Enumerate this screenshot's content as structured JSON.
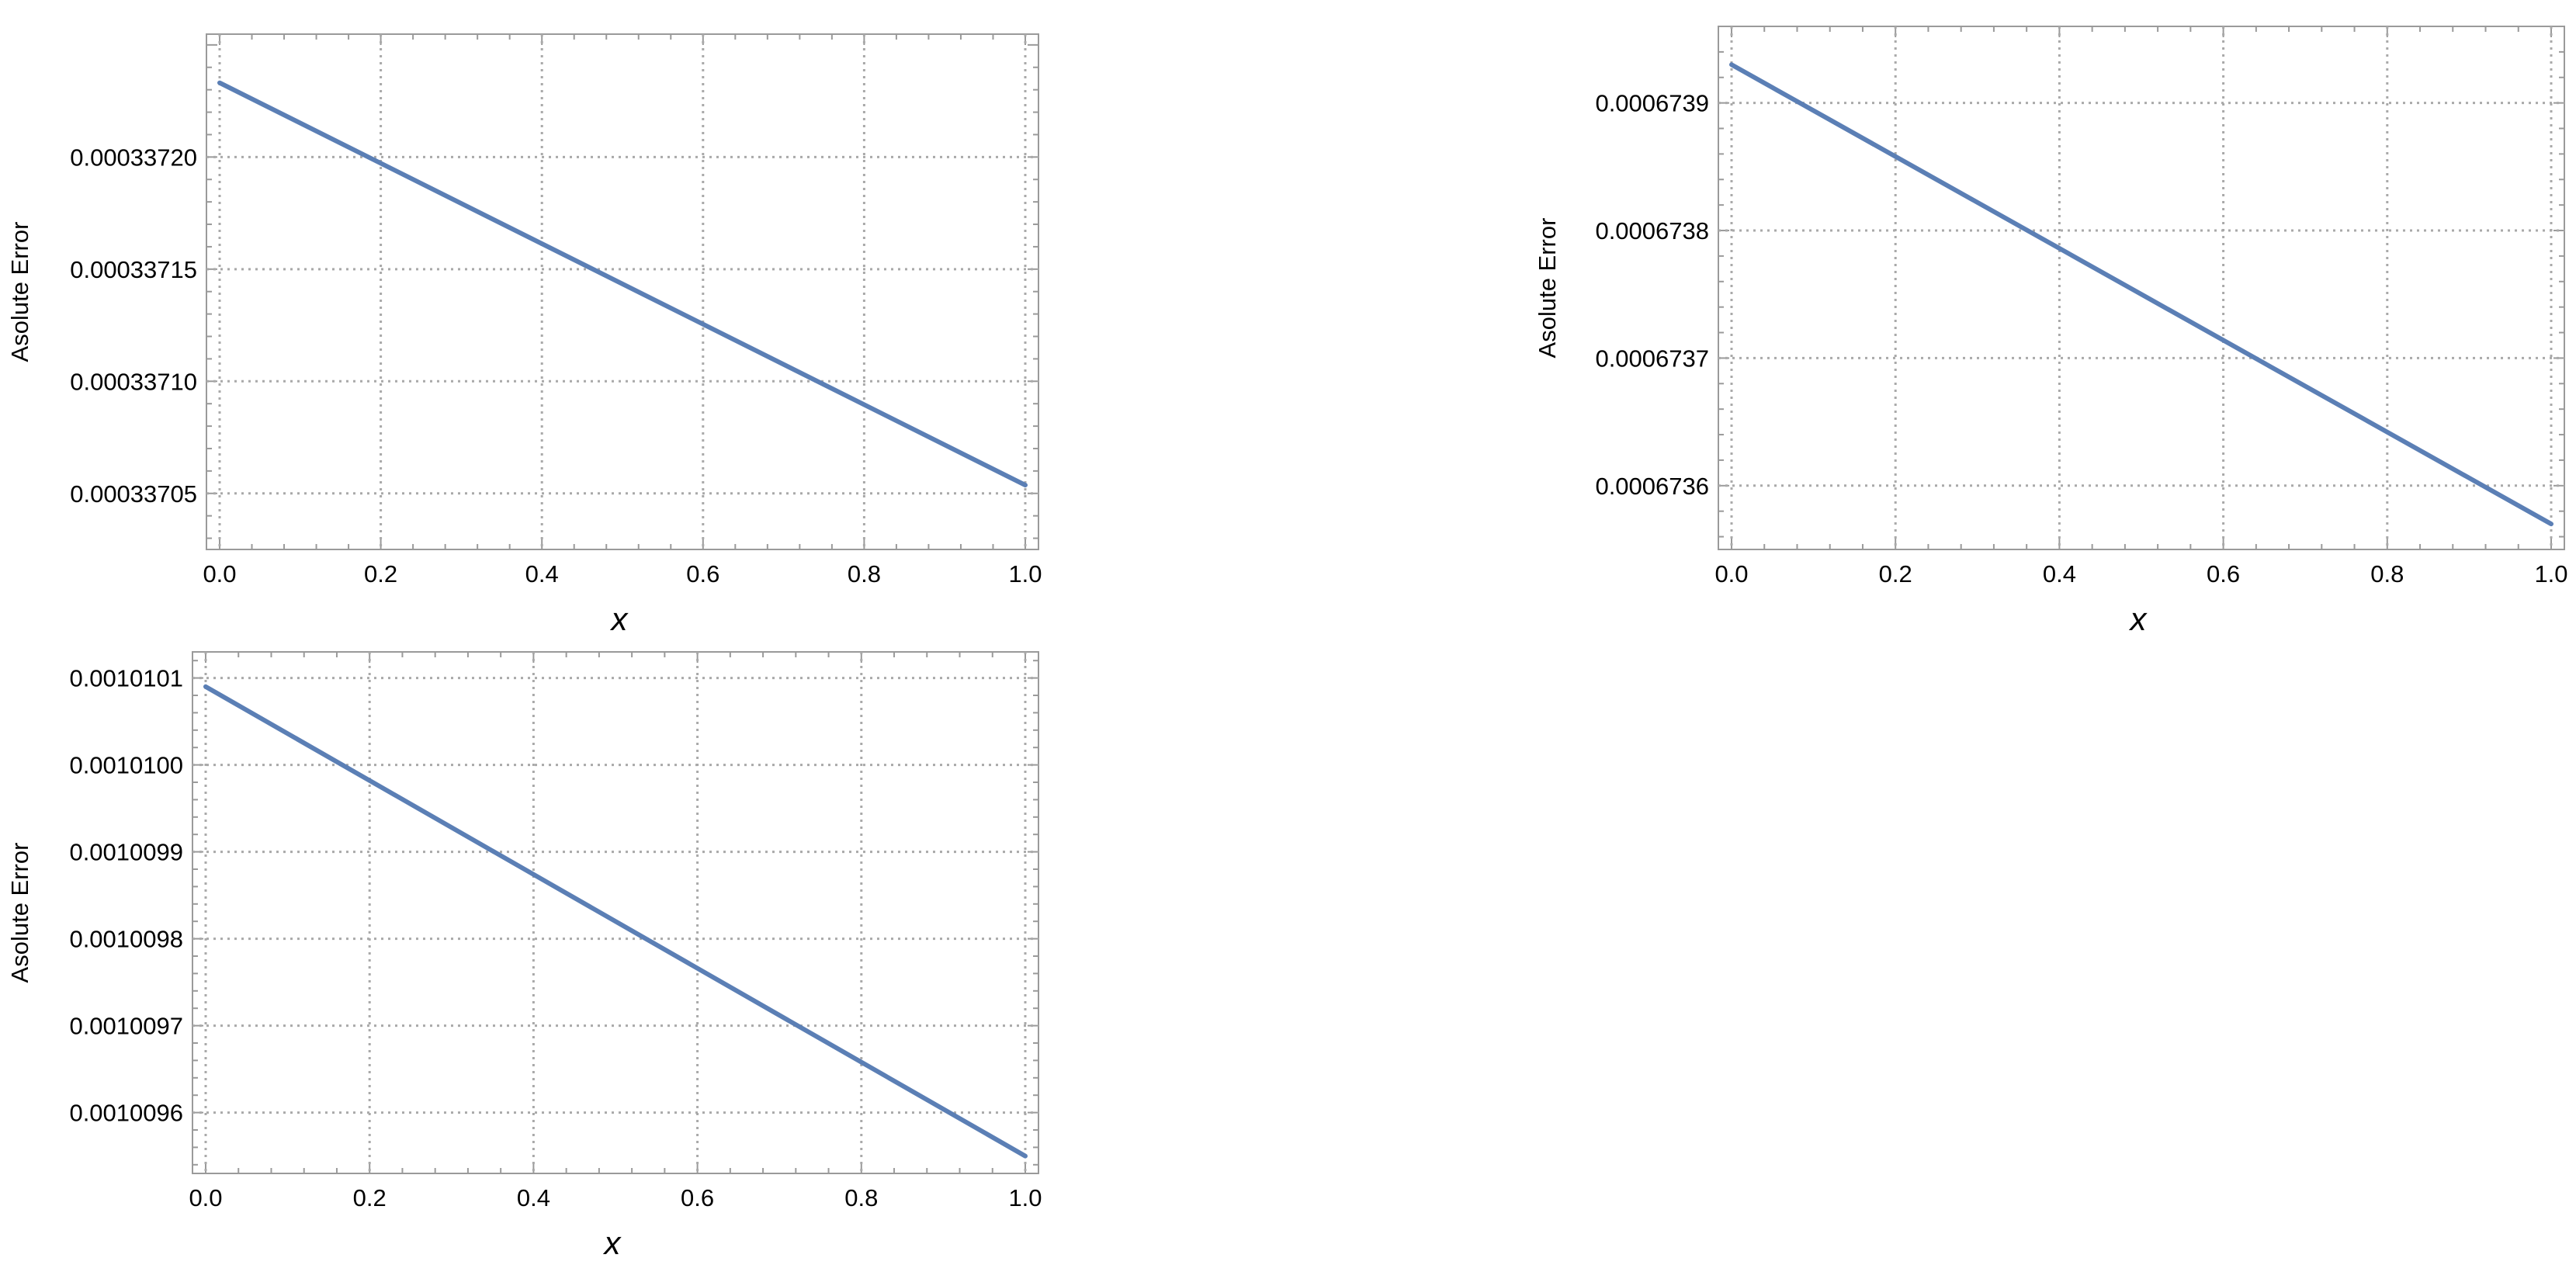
{
  "chart_data": [
    {
      "type": "line",
      "xlabel": "x",
      "ylabel": "Asolute Error",
      "xlim": [
        0,
        1
      ],
      "ylim": [
        0.000337025,
        0.0003372548
      ],
      "x_ticks": [
        0,
        0.2,
        0.4,
        0.6,
        0.8,
        1
      ],
      "x_tick_labels": [
        "0.0",
        "0.2",
        "0.4",
        "0.6",
        "0.8",
        "1.0"
      ],
      "y_ticks": [
        0.00033705,
        0.0003371,
        0.00033715,
        0.0003372
      ],
      "y_tick_labels": [
        "0.00033705",
        "0.00033710",
        "0.00033715",
        "0.00033720"
      ],
      "grid": true,
      "series": [
        {
          "x": [
            0,
            1
          ],
          "y": [
            0.0003372331,
            0.0003370537
          ]
        }
      ]
    },
    {
      "type": "line",
      "xlabel": "x",
      "ylabel": "Asolute Error",
      "xlim": [
        0,
        1
      ],
      "ylim": [
        0.00067355,
        0.00067396
      ],
      "x_ticks": [
        0,
        0.2,
        0.4,
        0.6,
        0.8,
        1
      ],
      "x_tick_labels": [
        "0.0",
        "0.2",
        "0.4",
        "0.6",
        "0.8",
        "1.0"
      ],
      "y_ticks": [
        0.0006736,
        0.0006737,
        0.0006738,
        0.0006739
      ],
      "y_tick_labels": [
        "0.0006736",
        "0.0006737",
        "0.0006738",
        "0.0006739"
      ],
      "grid": true,
      "series": [
        {
          "x": [
            0,
            1
          ],
          "y": [
            0.00067393,
            0.00067357
          ]
        }
      ]
    },
    {
      "type": "line",
      "xlabel": "x",
      "ylabel": "Asolute Error",
      "xlim": [
        0,
        1
      ],
      "ylim": [
        0.00100953,
        0.00101013
      ],
      "x_ticks": [
        0,
        0.2,
        0.4,
        0.6,
        0.8,
        1
      ],
      "x_tick_labels": [
        "0.0",
        "0.2",
        "0.4",
        "0.6",
        "0.8",
        "1.0"
      ],
      "y_ticks": [
        0.0010096,
        0.0010097,
        0.0010098,
        0.0010099,
        0.00101,
        0.0010101
      ],
      "y_tick_labels": [
        "0.0010096",
        "0.0010097",
        "0.0010098",
        "0.0010099",
        "0.0010100",
        "0.0010101"
      ],
      "grid": true,
      "series": [
        {
          "x": [
            0,
            1
          ],
          "y": [
            0.00101009,
            0.00100955
          ]
        }
      ]
    }
  ],
  "colors": {
    "line": "#5b7fb5",
    "grid": "#a9a9a9",
    "frame": "#9a9a9a"
  }
}
